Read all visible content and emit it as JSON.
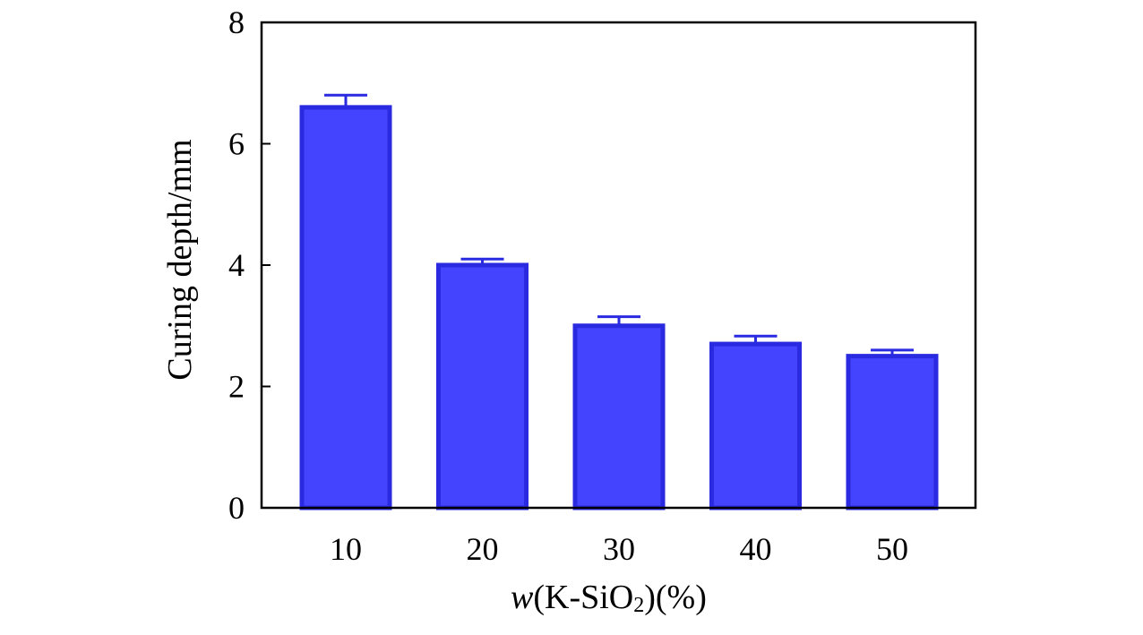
{
  "chart_data": {
    "type": "bar",
    "categories": [
      "10",
      "20",
      "30",
      "40",
      "50"
    ],
    "values": [
      6.6,
      4.0,
      3.0,
      2.7,
      2.5
    ],
    "errors": [
      0.2,
      0.1,
      0.15,
      0.13,
      0.1
    ],
    "ylabel": "Curing depth/mm",
    "xlabel": {
      "var": "w",
      "pre": "(K-SiO",
      "sub": "2",
      "post": ")(%)"
    },
    "ylim": [
      0,
      8
    ],
    "yticks": [
      "0",
      "2",
      "4",
      "6",
      "8"
    ],
    "bar_color": "#4444ff",
    "bar_edge_color": "#2a2ae0",
    "grid": false
  }
}
